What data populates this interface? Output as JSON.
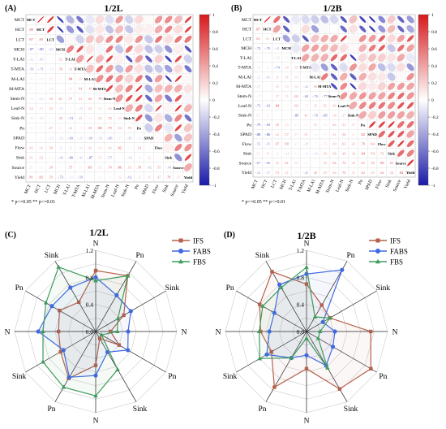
{
  "panelA": {
    "letter": "(A)",
    "title": "1/2L",
    "variables": [
      "MCT",
      "HCT",
      "LCT",
      "MCH",
      "T-LAI",
      "T-MTA",
      "M-LAI",
      "M-MTA",
      "Stem-N",
      "Leaf-N",
      "Sink-N",
      "Pn",
      "SPAD",
      "Flow",
      "Sink",
      "Source",
      "Yield"
    ],
    "colorbar_ticks": [
      "1",
      "0.8",
      "0.6",
      "0.4",
      "0.2",
      "0",
      "-0.2",
      "-0.4",
      "-0.6",
      "-0.8",
      "-1"
    ],
    "signif_note": "* p<=0.05  ** p<=0.01"
  },
  "panelB": {
    "letter": "(B)",
    "title": "1/2B",
    "variables": [
      "MCT",
      "HCT",
      "LCT",
      "MCH",
      "T-LAI",
      "T-MTA",
      "M-LAI",
      "M-MTA",
      "Stem-N",
      "Leaf-N",
      "Sink-N",
      "Pn",
      "SPAD",
      "Flow",
      "Sink",
      "Source",
      "Yield"
    ],
    "colorbar_ticks": [
      "1",
      "0.8",
      "0.6",
      "0.4",
      "0.2",
      "0",
      "-0.2",
      "-0.4",
      "-0.6",
      "-0.8",
      "-1"
    ],
    "signif_note": "* p<=0.05  ** p<=0.01"
  },
  "panelC": {
    "letter": "(C)",
    "title": "1/2L",
    "axes": [
      "N",
      "Pn",
      "Sink",
      "N",
      "Pn",
      "Sink",
      "N",
      "Pn",
      "Sink",
      "N",
      "Pn",
      "Sink"
    ],
    "radial_ticks": [
      "1.2",
      "0.8",
      "0.4",
      "0.0"
    ],
    "legend": [
      "IFS",
      "FABS",
      "FBS"
    ]
  },
  "panelD": {
    "letter": "(D)",
    "title": "1/2B",
    "axes": [
      "N",
      "Pn",
      "Sink",
      "N",
      "Pn",
      "Sink",
      "N",
      "Pn",
      "Sink",
      "N",
      "Pn",
      "Sink"
    ],
    "radial_ticks": [
      "1.2",
      "0.8",
      "0.4",
      "0.0"
    ],
    "legend": [
      "IFS",
      "FABS",
      "FBS"
    ]
  },
  "chart_data": [
    {
      "type": "heatmap",
      "title": "1/2L",
      "variables": [
        "MCT",
        "HCT",
        "LCT",
        "MCH",
        "T-LAI",
        "T-MTA",
        "M-LAI",
        "M-MTA",
        "Stem-N",
        "Leaf-N",
        "Sink-N",
        "Pn",
        "SPAD",
        "Flow",
        "Sink",
        "Source",
        "Yield"
      ],
      "color_range": [
        -1,
        1
      ],
      "lower_triangle_values": [
        [],
        [
          0.99
        ],
        [
          0.87,
          0.8
        ],
        [
          -0.87,
          -0.9,
          -0.42
        ],
        [
          -0.32,
          -0.45,
          0.03,
          0.52
        ],
        [
          -0.59,
          -0.71,
          -0.19,
          0.76,
          0.4
        ],
        [
          -0.09,
          -0.13,
          0.25,
          0.11,
          0.94,
          0.26
        ],
        [
          0.15,
          0.1,
          0.24,
          -0.04,
          0.31,
          0.64,
          0.48
        ],
        [
          -0.14,
          -0.26,
          0.5,
          0.61,
          0.77,
          0.44,
          0.6,
          0.79
        ],
        [
          0.44,
          0.29,
          0.53,
          -0.25,
          0.06,
          -0.26,
          0.43,
          0.28,
          0.44
        ],
        [
          -0.19,
          -0.25,
          0.1,
          0.58,
          -0.74,
          0.43,
          0.19,
          0.53,
          0.74,
          0.35
        ],
        [
          0.16,
          0.08,
          0.47,
          0.16,
          0.42,
          0.13,
          0.58,
          0.88,
          0.79,
          0.54,
          0.73
        ],
        [
          0.02,
          0.07,
          -0.23,
          -0.26,
          -0.69,
          -0.26,
          -0.6,
          -0.36,
          -0.66,
          -0.17,
          -0.45,
          -0.22
        ],
        [
          0.45,
          0.36,
          0.59,
          -0.21,
          0.2,
          -0.24,
          0.42,
          0.28,
          0.4,
          0.92,
          0.11,
          0.54,
          0.02
        ],
        [
          0.51,
          0.53,
          0.14,
          -0.46,
          -0.8,
          -0.41,
          -0.87,
          0.33,
          -0.57,
          0.04,
          -0.36,
          -0.09,
          0.32,
          0.06
        ],
        [
          0.31,
          0.15,
          0.58,
          0.07,
          0.75,
          0.16,
          0.85,
          0.35,
          0.7,
          0.86,
          0.53,
          0.78,
          -0.42,
          0.55,
          -0.49
        ],
        [
          0.81,
          0.82,
          0.59,
          -0.73,
          -0.2,
          -0.59,
          0.03,
          0.12,
          -0.04,
          0.32,
          -0.62,
          0.25,
          0.26,
          0.47,
          0.79,
          0.37
        ]
      ]
    },
    {
      "type": "heatmap",
      "title": "1/2B",
      "variables": [
        "MCT",
        "HCT",
        "LCT",
        "MCH",
        "T-LAI",
        "T-MTA",
        "M-LAI",
        "M-MTA",
        "Stem-N",
        "Leaf-N",
        "Sink-N",
        "Pn",
        "SPAD",
        "Flow",
        "Sink",
        "Source",
        "Yield"
      ],
      "color_range": [
        -1,
        1
      ],
      "lower_triangle_values": [
        [],
        [
          0.97
        ],
        [
          0.62,
          0.41
        ],
        [
          -0.72,
          -0.7,
          -0.41
        ],
        [
          -0.09,
          -0.01,
          -0.22,
          -0.09
        ],
        [
          -0.16,
          0.15,
          -0.74,
          0.39,
          0.39
        ],
        [
          -0.22,
          -0.41,
          0.26,
          0.41,
          0.33,
          -0.1
        ],
        [
          -0.27,
          -0.02,
          0.35,
          0.33,
          0.34,
          -0.42,
          0.56
        ],
        [
          -0.17,
          0.01,
          0.37,
          0.31,
          0.65,
          -0.69,
          -0.7,
          -0.77
        ],
        [
          -0.73,
          -0.64,
          0.84,
          0.14,
          0.63,
          -0.15,
          0.35,
          0.51,
          0.46
        ],
        [
          0.27,
          0.13,
          0.05,
          0.03,
          -0.85,
          0.46,
          -0.7,
          -0.85,
          0.38,
          0.37
        ],
        [
          -0.79,
          -0.68,
          0.48,
          0.33,
          0.17,
          0.15,
          0.35,
          0.16,
          0.46,
          0.51,
          0.37
        ],
        [
          -0.88,
          -0.86,
          0.42,
          0.57,
          0.27,
          0.38,
          0.14,
          0.09,
          0.41,
          0.56,
          0.21,
          0.82
        ],
        [
          -0.52,
          -0.45,
          0.67,
          0.69,
          0.21,
          -0.28,
          0.1,
          0.19,
          0.4,
          0.61,
          0.42,
          0.79,
          0.64
        ],
        [
          0.23,
          0.29,
          0.16,
          -0.24,
          0.12,
          -0.16,
          -0.24,
          0.4,
          0.54,
          0.49,
          0.42,
          0.84,
          0.74,
          0.71
        ],
        [
          -0.67,
          -0.66,
          0.41,
          0.61,
          0.37,
          0.14,
          0.02,
          0.43,
          0.64,
          0.72,
          0.4,
          0.61,
          0.72,
          0.85,
          0.63
        ],
        [
          -0.44,
          -0.37,
          0.71,
          0.41,
          -0.09,
          -0.45,
          0.48,
          0.39,
          0.46,
          0.73,
          0.35,
          0.62,
          0.4,
          0.64,
          0.54,
          0.84
        ]
      ]
    },
    {
      "type": "radar",
      "title": "1/2L",
      "axes": [
        "N",
        "Pn",
        "Sink",
        "N",
        "Pn",
        "Sink",
        "N",
        "Pn",
        "Sink",
        "N",
        "Pn",
        "Sink"
      ],
      "rmax": 1.2,
      "series": [
        {
          "name": "IFS",
          "color": "#b5604a",
          "values": [
            0.9,
            0.95,
            0.48,
            0.22,
            0.4,
            0.12,
            0.5,
            0.8,
            0.6,
            0.55,
            0.62,
            0.5
          ]
        },
        {
          "name": "FABS",
          "color": "#4169e1",
          "values": [
            0.8,
            0.62,
            0.6,
            0.48,
            0.55,
            0.35,
            0.65,
            0.78,
            0.55,
            0.85,
            0.75,
            0.75
          ]
        },
        {
          "name": "FBS",
          "color": "#3d9b5c",
          "values": [
            0.75,
            0.95,
            0.38,
            0.32,
            0.1,
            0.65,
            0.95,
            0.95,
            0.9,
            0.78,
            0.85,
            1.1
          ]
        }
      ]
    },
    {
      "type": "radar",
      "title": "1/2B",
      "axes": [
        "N",
        "Pn",
        "Sink",
        "N",
        "Pn",
        "Sink",
        "N",
        "Pn",
        "Sink",
        "N",
        "Pn",
        "Sink"
      ],
      "rmax": 1.2,
      "series": [
        {
          "name": "IFS",
          "color": "#b5604a",
          "values": [
            0.7,
            0.45,
            0.4,
            0.95,
            1.1,
            0.98,
            0.55,
            0.95,
            0.6,
            0.68,
            0.8,
            1.02
          ]
        },
        {
          "name": "FABS",
          "color": "#4169e1",
          "values": [
            0.85,
            1.05,
            0.28,
            0.42,
            0.45,
            0.58,
            0.35,
            0.45,
            0.68,
            0.55,
            0.55,
            0.8
          ]
        },
        {
          "name": "FBS",
          "color": "#3d9b5c",
          "values": [
            0.95,
            0.25,
            0.4,
            0.2,
            0.2,
            0.62,
            0.1,
            0.45,
            0.8,
            0.7,
            0.75,
            0.75
          ]
        }
      ]
    }
  ]
}
